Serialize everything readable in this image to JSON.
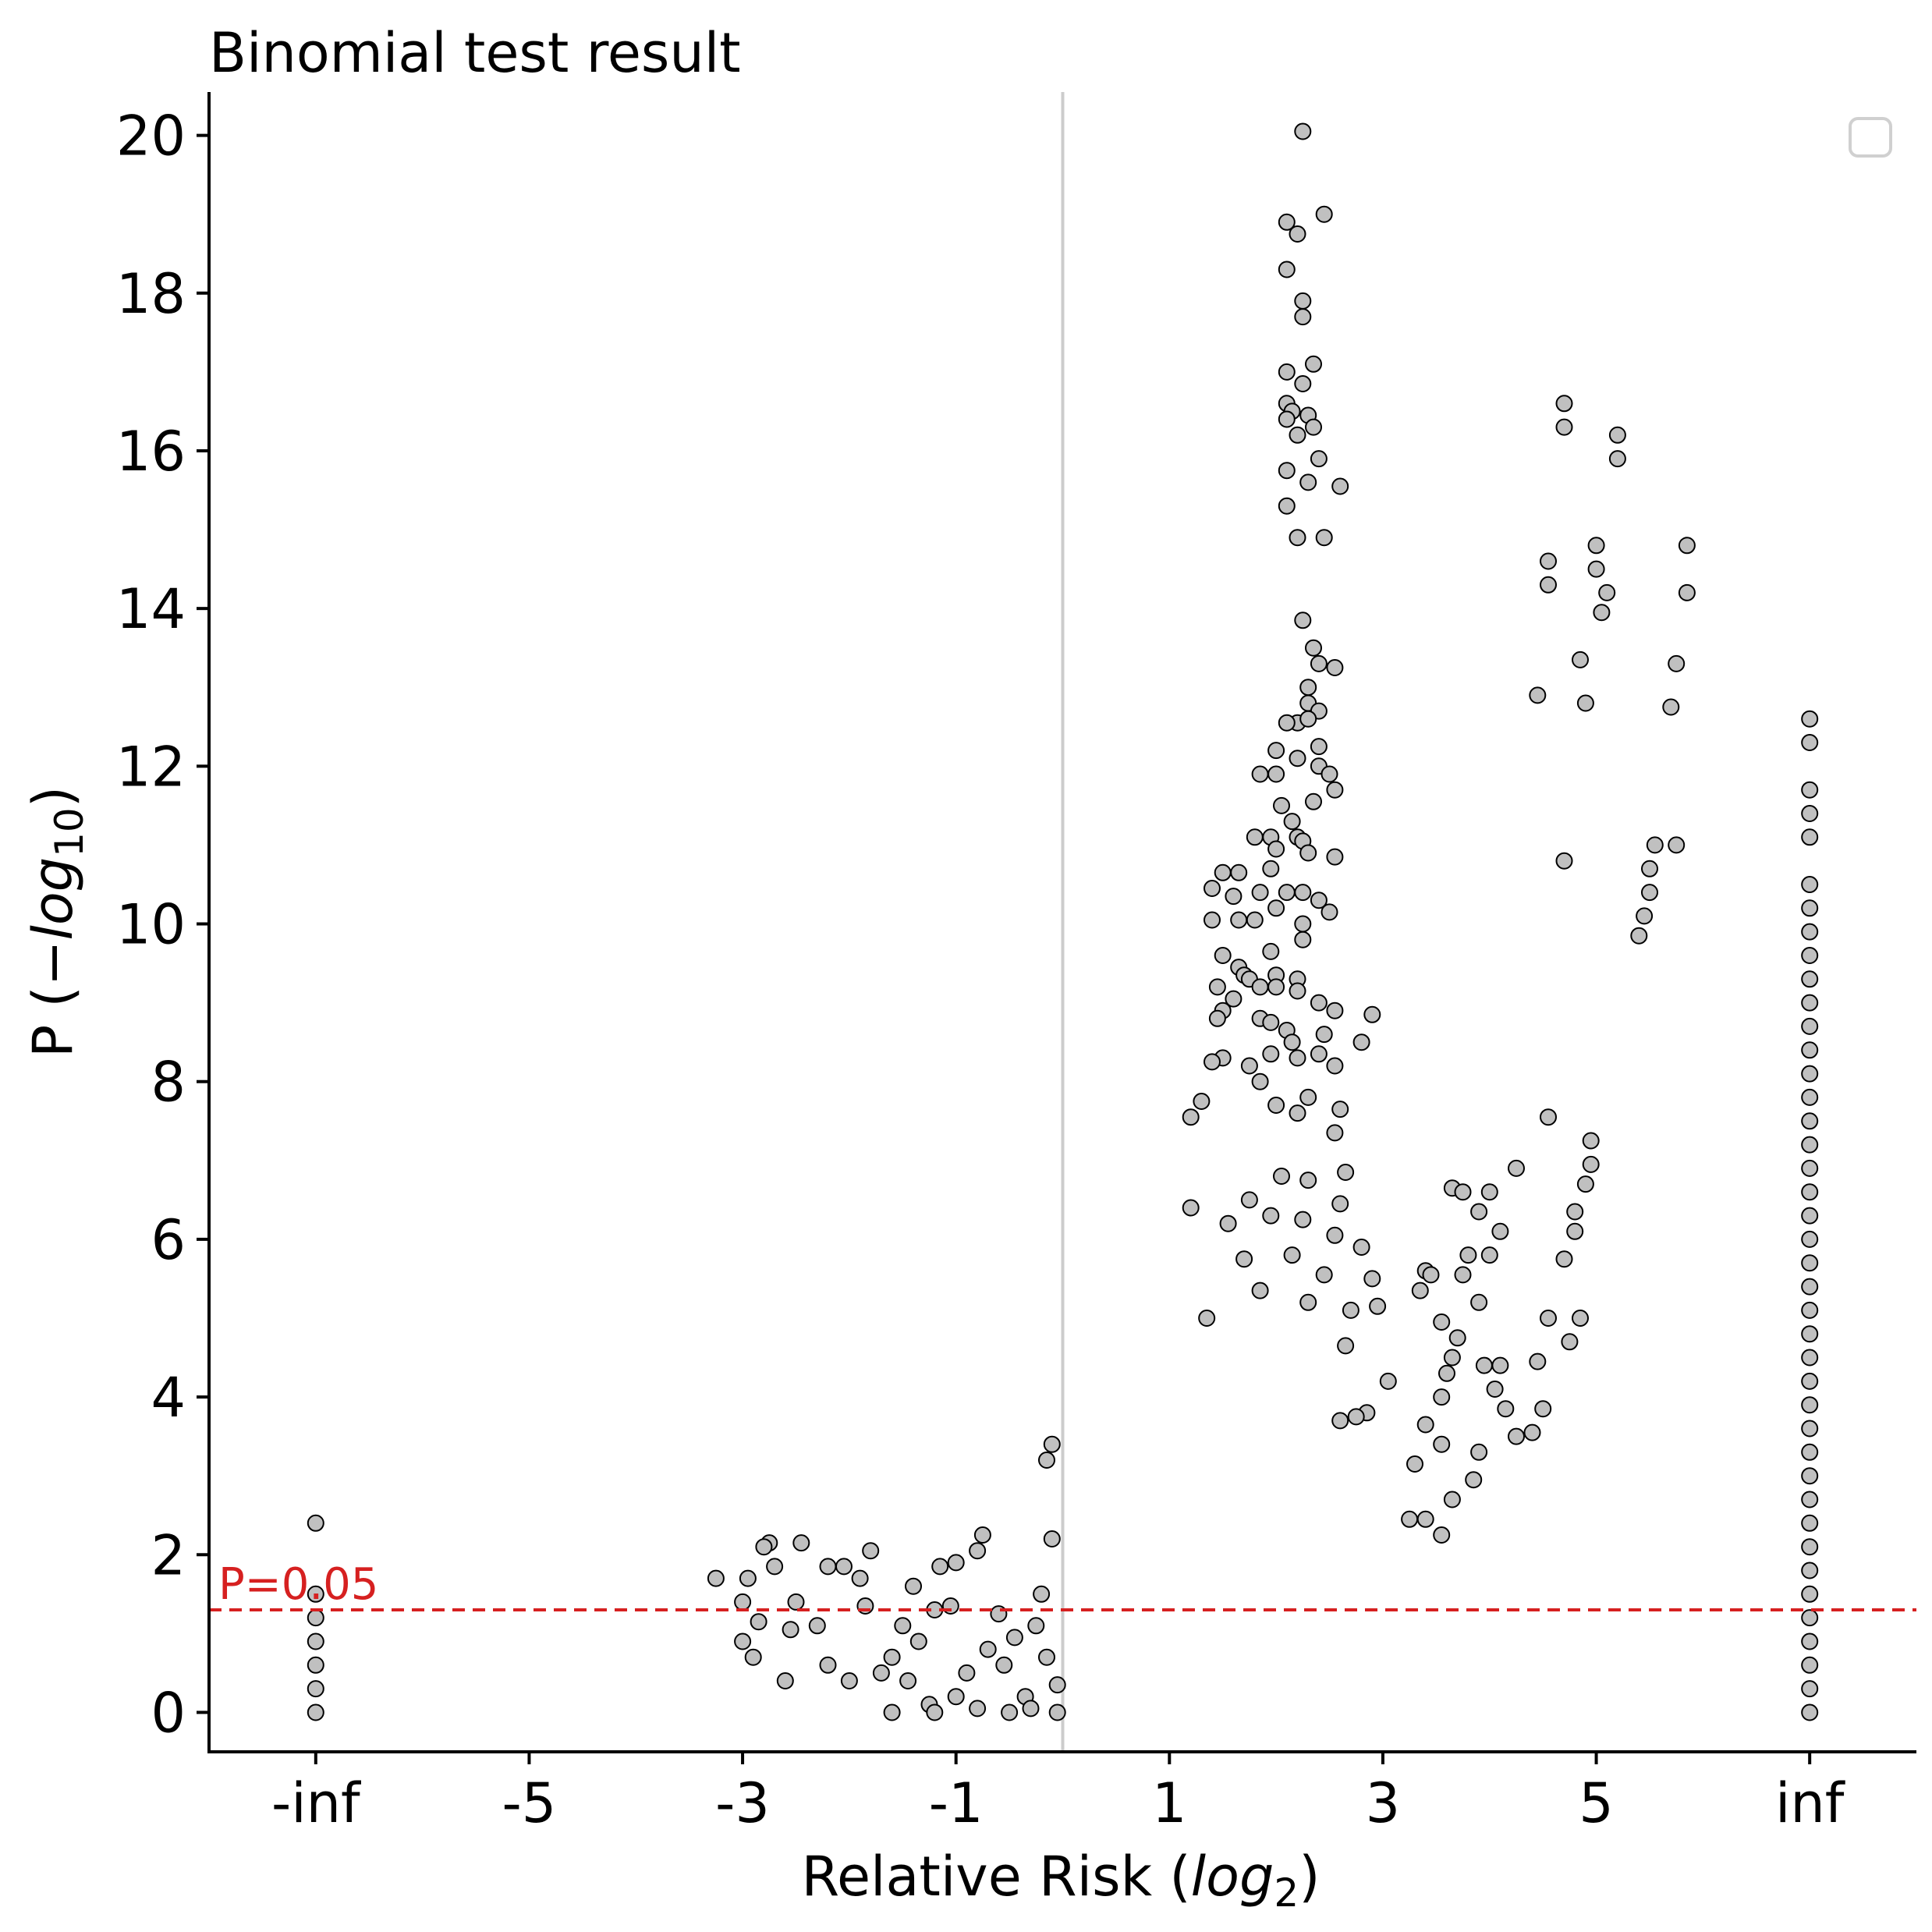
{
  "chart_data": {
    "type": "scatter",
    "title": "Binomial test result",
    "xlabel": "Relative Risk (log2)",
    "ylabel": "P (−log10)",
    "x_ticks": [
      "-inf",
      "-5",
      "-3",
      "-1",
      "1",
      "3",
      "5",
      "inf"
    ],
    "x_tick_values": [
      -7,
      -5,
      -3,
      -1,
      1,
      3,
      5,
      7
    ],
    "y_ticks": [
      0,
      2,
      4,
      6,
      8,
      10,
      12,
      14,
      16,
      18,
      20
    ],
    "xlim": [
      -8.0,
      8.0
    ],
    "ylim": [
      -0.5,
      20.55
    ],
    "grid": false,
    "legend": "top-right (empty)",
    "marker_fill": "#c0c0c0",
    "marker_edge": "#000000",
    "vertical_reference_line": {
      "x": 0,
      "color": "#cccccc"
    },
    "threshold_line": {
      "y": 1.3,
      "label": "P=0.05",
      "color": "#d62020",
      "style": "dashed"
    },
    "negative_infinity_points": [
      0,
      0.3,
      0.6,
      0.9,
      1.2,
      1.5,
      2.4
    ],
    "positive_infinity_points": [
      0,
      0.3,
      0.6,
      0.9,
      1.2,
      1.5,
      1.8,
      2.1,
      2.4,
      2.7,
      3.0,
      3.3,
      3.6,
      3.9,
      4.2,
      4.5,
      4.8,
      5.1,
      5.4,
      5.7,
      6.0,
      6.3,
      6.6,
      6.9,
      7.2,
      7.5,
      7.8,
      8.1,
      8.4,
      8.7,
      9.0,
      9.3,
      9.6,
      9.9,
      10.2,
      10.5,
      11.1,
      11.4,
      11.7,
      12.3,
      12.6
    ],
    "points": [
      [
        2.25,
        20.05
      ],
      [
        2.45,
        19.0
      ],
      [
        2.1,
        18.9
      ],
      [
        2.2,
        18.75
      ],
      [
        2.1,
        18.3
      ],
      [
        2.25,
        17.9
      ],
      [
        2.25,
        17.7
      ],
      [
        2.35,
        17.1
      ],
      [
        2.1,
        17.0
      ],
      [
        2.25,
        16.85
      ],
      [
        2.1,
        16.6
      ],
      [
        2.15,
        16.5
      ],
      [
        2.3,
        16.45
      ],
      [
        2.1,
        16.4
      ],
      [
        2.2,
        16.2
      ],
      [
        2.35,
        16.3
      ],
      [
        2.4,
        15.9
      ],
      [
        2.1,
        15.75
      ],
      [
        2.3,
        15.6
      ],
      [
        2.6,
        15.55
      ],
      [
        2.1,
        15.3
      ],
      [
        2.2,
        14.9
      ],
      [
        2.45,
        14.9
      ],
      [
        2.25,
        13.85
      ],
      [
        2.35,
        13.5
      ],
      [
        2.4,
        13.3
      ],
      [
        2.55,
        13.25
      ],
      [
        2.3,
        13.0
      ],
      [
        2.3,
        12.8
      ],
      [
        2.4,
        12.7
      ],
      [
        2.2,
        12.55
      ],
      [
        2.1,
        12.55
      ],
      [
        2.3,
        12.6
      ],
      [
        2.4,
        12.25
      ],
      [
        2.0,
        12.2
      ],
      [
        2.2,
        12.1
      ],
      [
        2.4,
        12.0
      ],
      [
        2.5,
        11.9
      ],
      [
        1.85,
        11.9
      ],
      [
        2.0,
        11.9
      ],
      [
        2.55,
        11.7
      ],
      [
        2.35,
        11.55
      ],
      [
        2.05,
        11.5
      ],
      [
        2.15,
        11.3
      ],
      [
        2.2,
        11.1
      ],
      [
        2.25,
        11.05
      ],
      [
        1.8,
        11.1
      ],
      [
        1.95,
        11.1
      ],
      [
        2.3,
        10.9
      ],
      [
        2.0,
        10.95
      ],
      [
        2.55,
        10.85
      ],
      [
        1.95,
        10.7
      ],
      [
        1.5,
        10.65
      ],
      [
        1.65,
        10.65
      ],
      [
        1.4,
        10.45
      ],
      [
        2.1,
        10.4
      ],
      [
        2.25,
        10.4
      ],
      [
        1.85,
        10.4
      ],
      [
        1.6,
        10.35
      ],
      [
        2.4,
        10.3
      ],
      [
        2.0,
        10.2
      ],
      [
        2.5,
        10.15
      ],
      [
        1.4,
        10.05
      ],
      [
        1.65,
        10.05
      ],
      [
        1.8,
        10.05
      ],
      [
        2.25,
        10.0
      ],
      [
        2.25,
        9.8
      ],
      [
        1.95,
        9.65
      ],
      [
        1.5,
        9.6
      ],
      [
        1.65,
        9.45
      ],
      [
        1.7,
        9.35
      ],
      [
        2.0,
        9.35
      ],
      [
        2.2,
        9.3
      ],
      [
        1.75,
        9.3
      ],
      [
        1.45,
        9.2
      ],
      [
        1.85,
        9.2
      ],
      [
        2.0,
        9.2
      ],
      [
        2.2,
        9.15
      ],
      [
        1.6,
        9.05
      ],
      [
        2.4,
        9.0
      ],
      [
        1.5,
        8.9
      ],
      [
        2.55,
        8.9
      ],
      [
        1.45,
        8.8
      ],
      [
        1.85,
        8.8
      ],
      [
        2.9,
        8.85
      ],
      [
        1.95,
        8.75
      ],
      [
        2.1,
        8.65
      ],
      [
        2.45,
        8.6
      ],
      [
        2.8,
        8.5
      ],
      [
        2.15,
        8.5
      ],
      [
        2.4,
        8.35
      ],
      [
        1.95,
        8.35
      ],
      [
        2.2,
        8.3
      ],
      [
        2.55,
        8.2
      ],
      [
        1.5,
        8.3
      ],
      [
        1.4,
        8.25
      ],
      [
        1.75,
        8.2
      ],
      [
        1.85,
        8.0
      ],
      [
        2.3,
        7.8
      ],
      [
        2.6,
        7.65
      ],
      [
        2.0,
        7.7
      ],
      [
        2.2,
        7.6
      ],
      [
        1.3,
        7.75
      ],
      [
        1.2,
        7.55
      ],
      [
        2.55,
        7.35
      ],
      [
        2.65,
        6.85
      ],
      [
        2.05,
        6.8
      ],
      [
        2.3,
        6.75
      ],
      [
        2.6,
        6.45
      ],
      [
        1.75,
        6.5
      ],
      [
        1.2,
        6.4
      ],
      [
        1.95,
        6.3
      ],
      [
        2.25,
        6.25
      ],
      [
        2.55,
        6.05
      ],
      [
        2.8,
        5.9
      ],
      [
        1.7,
        5.75
      ],
      [
        2.15,
        5.8
      ],
      [
        2.9,
        5.5
      ],
      [
        2.45,
        5.55
      ],
      [
        1.55,
        6.2
      ],
      [
        1.85,
        5.35
      ],
      [
        2.3,
        5.2
      ],
      [
        2.7,
        5.1
      ],
      [
        2.95,
        5.15
      ],
      [
        1.35,
        5.0
      ],
      [
        2.65,
        4.65
      ],
      [
        3.05,
        4.2
      ],
      [
        2.85,
        3.8
      ],
      [
        2.75,
        3.75
      ],
      [
        2.6,
        3.7
      ],
      [
        3.4,
        5.6
      ],
      [
        3.45,
        5.55
      ],
      [
        3.35,
        5.35
      ],
      [
        3.55,
        4.0
      ],
      [
        3.4,
        3.65
      ],
      [
        3.55,
        3.4
      ],
      [
        3.3,
        3.15
      ],
      [
        3.25,
        2.45
      ],
      [
        3.65,
        6.65
      ],
      [
        3.75,
        6.6
      ],
      [
        3.9,
        6.35
      ],
      [
        4.0,
        6.6
      ],
      [
        3.8,
        5.8
      ],
      [
        3.75,
        5.55
      ],
      [
        3.9,
        5.2
      ],
      [
        3.65,
        4.5
      ],
      [
        3.55,
        4.95
      ],
      [
        3.7,
        4.75
      ],
      [
        3.6,
        4.3
      ],
      [
        3.95,
        4.4
      ],
      [
        4.05,
        4.1
      ],
      [
        4.15,
        3.85
      ],
      [
        4.25,
        3.5
      ],
      [
        3.9,
        3.3
      ],
      [
        3.85,
        2.95
      ],
      [
        3.65,
        2.7
      ],
      [
        3.4,
        2.45
      ],
      [
        3.55,
        2.25
      ],
      [
        4.1,
        6.1
      ],
      [
        4.25,
        6.9
      ],
      [
        4.0,
        5.8
      ],
      [
        4.1,
        4.4
      ],
      [
        4.45,
        4.45
      ],
      [
        4.5,
        3.85
      ],
      [
        4.4,
        3.55
      ],
      [
        4.55,
        7.55
      ],
      [
        4.55,
        5.0
      ],
      [
        4.7,
        5.75
      ],
      [
        4.75,
        4.7
      ],
      [
        4.8,
        6.35
      ],
      [
        4.8,
        6.1
      ],
      [
        4.85,
        5.0
      ],
      [
        4.9,
        6.7
      ],
      [
        4.95,
        7.25
      ],
      [
        4.95,
        6.95
      ],
      [
        4.45,
        12.9
      ],
      [
        4.55,
        14.3
      ],
      [
        4.55,
        14.6
      ],
      [
        4.7,
        16.6
      ],
      [
        4.7,
        16.3
      ],
      [
        4.85,
        13.35
      ],
      [
        4.9,
        12.8
      ],
      [
        5.0,
        14.8
      ],
      [
        5.0,
        14.5
      ],
      [
        5.05,
        13.95
      ],
      [
        5.1,
        14.2
      ],
      [
        5.2,
        15.9
      ],
      [
        5.2,
        16.2
      ],
      [
        4.7,
        10.8
      ],
      [
        5.4,
        9.85
      ],
      [
        5.45,
        10.1
      ],
      [
        5.5,
        10.4
      ],
      [
        5.5,
        10.7
      ],
      [
        5.55,
        11.0
      ],
      [
        5.75,
        11.0
      ],
      [
        5.7,
        12.75
      ],
      [
        5.75,
        13.3
      ],
      [
        5.85,
        14.8
      ],
      [
        5.85,
        14.2
      ],
      [
        -0.1,
        3.4
      ],
      [
        -0.15,
        3.2
      ],
      [
        -0.1,
        2.2
      ],
      [
        -0.35,
        0.2
      ],
      [
        -0.6,
        1.25
      ],
      [
        -0.75,
        2.25
      ],
      [
        -0.8,
        2.05
      ],
      [
        -1.0,
        1.9
      ],
      [
        -1.15,
        1.85
      ],
      [
        -1.05,
        1.35
      ],
      [
        -1.4,
        1.6
      ],
      [
        -1.2,
        1.3
      ],
      [
        -1.5,
        1.1
      ],
      [
        -1.35,
        0.9
      ],
      [
        -1.6,
        0.7
      ],
      [
        -1.8,
        2.05
      ],
      [
        -1.9,
        1.7
      ],
      [
        -1.85,
        1.35
      ],
      [
        -2.05,
        1.85
      ],
      [
        -2.2,
        1.85
      ],
      [
        -2.3,
        1.1
      ],
      [
        -2.45,
        2.15
      ],
      [
        -2.5,
        1.4
      ],
      [
        -2.55,
        1.05
      ],
      [
        -2.7,
        1.85
      ],
      [
        -2.75,
        2.15
      ],
      [
        -2.8,
        2.1
      ],
      [
        -2.85,
        1.15
      ],
      [
        -2.9,
        0.7
      ],
      [
        -2.95,
        1.7
      ],
      [
        -3.0,
        1.4
      ],
      [
        -3.25,
        1.7
      ],
      [
        -3.0,
        0.9
      ],
      [
        -2.6,
        0.4
      ],
      [
        -2.2,
        0.6
      ],
      [
        -2.0,
        0.4
      ],
      [
        -1.7,
        0.5
      ],
      [
        -1.45,
        0.4
      ],
      [
        -1.25,
        0.1
      ],
      [
        -1.0,
        0.2
      ],
      [
        -0.9,
        0.5
      ],
      [
        -0.7,
        0.8
      ],
      [
        -0.55,
        0.6
      ],
      [
        -0.45,
        0.95
      ],
      [
        -0.25,
        1.1
      ],
      [
        -0.2,
        1.5
      ],
      [
        -0.15,
        0.7
      ],
      [
        -0.05,
        0.35
      ],
      [
        -0.3,
        0.05
      ],
      [
        -0.8,
        0.05
      ],
      [
        -1.2,
        0.0
      ],
      [
        -1.6,
        0.0
      ],
      [
        -0.5,
        0.0
      ],
      [
        -0.05,
        0.0
      ]
    ]
  }
}
